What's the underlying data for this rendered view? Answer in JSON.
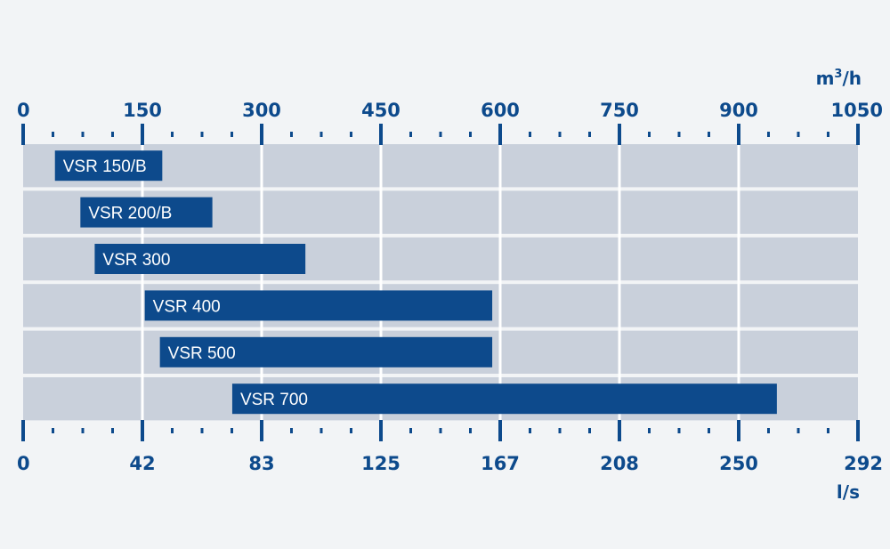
{
  "colors": {
    "background": "#f2f4f6",
    "row": "#c9d0db",
    "grid": "#ffffff",
    "bar": "#0d4a8c",
    "axis": "#0d4a8c"
  },
  "chart_data": {
    "type": "bar",
    "orientation": "horizontal",
    "top_axis": {
      "unit": "m³/h",
      "unit_base": "m",
      "unit_sup": "3",
      "unit_tail": "/h",
      "ticks": [
        0,
        150,
        300,
        450,
        600,
        750,
        900,
        1050
      ],
      "range": [
        0,
        1050
      ]
    },
    "bottom_axis": {
      "unit": "l/s",
      "ticks": [
        0,
        42,
        83,
        125,
        167,
        208,
        250,
        292
      ],
      "range": [
        0,
        292
      ]
    },
    "series": [
      {
        "label": "VSR 150/B",
        "range_m3h": [
          40,
          175
        ]
      },
      {
        "label": "VSR 200/B",
        "range_m3h": [
          72,
          238
        ]
      },
      {
        "label": "VSR 300",
        "range_m3h": [
          90,
          355
        ]
      },
      {
        "label": "VSR 400",
        "range_m3h": [
          153,
          590
        ]
      },
      {
        "label": "VSR 500",
        "range_m3h": [
          172,
          590
        ]
      },
      {
        "label": "VSR 700",
        "range_m3h": [
          263,
          948
        ]
      }
    ],
    "grid": true
  }
}
